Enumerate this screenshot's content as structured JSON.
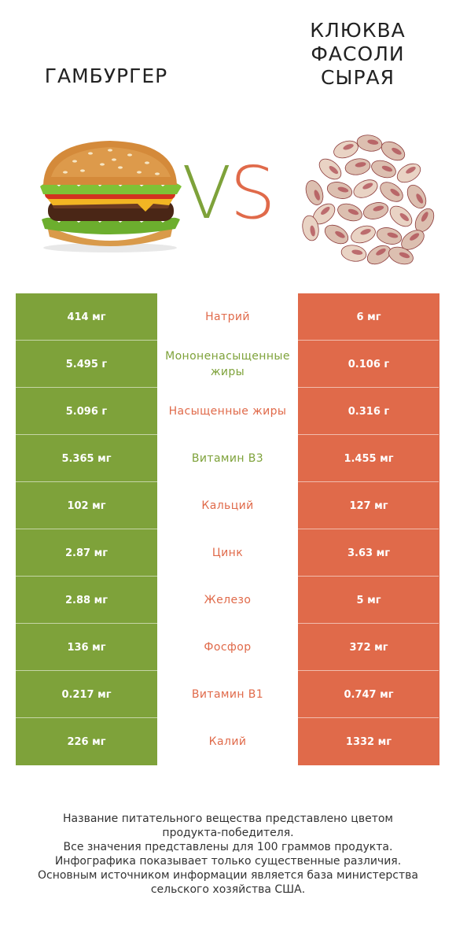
{
  "left_product": {
    "title": "ГАМБУРГЕР",
    "image": "hamburger-photo"
  },
  "right_product": {
    "title_lines": [
      "КЛЮКВА",
      "ФАСОЛИ",
      "СЫРАЯ"
    ],
    "image": "cranberry-beans-photo"
  },
  "vs": {
    "v": "V",
    "s": "S"
  },
  "colors": {
    "left": "#7ea23a",
    "right": "#e06a4a"
  },
  "rows": [
    {
      "left": "414 мг",
      "nutrient": "Натрий",
      "right": "6 мг",
      "winner": "right"
    },
    {
      "left": "5.495 г",
      "nutrient": "Мононенасыщенные жиры",
      "right": "0.106 г",
      "winner": "left"
    },
    {
      "left": "5.096 г",
      "nutrient": "Насыщенные жиры",
      "right": "0.316 г",
      "winner": "right"
    },
    {
      "left": "5.365 мг",
      "nutrient": "Витамин B3",
      "right": "1.455 мг",
      "winner": "left"
    },
    {
      "left": "102 мг",
      "nutrient": "Кальций",
      "right": "127 мг",
      "winner": "right"
    },
    {
      "left": "2.87 мг",
      "nutrient": "Цинк",
      "right": "3.63 мг",
      "winner": "right"
    },
    {
      "left": "2.88 мг",
      "nutrient": "Железо",
      "right": "5 мг",
      "winner": "right"
    },
    {
      "left": "136 мг",
      "nutrient": "Фосфор",
      "right": "372 мг",
      "winner": "right"
    },
    {
      "left": "0.217 мг",
      "nutrient": "Витамин B1",
      "right": "0.747 мг",
      "winner": "right"
    },
    {
      "left": "226 мг",
      "nutrient": "Калий",
      "right": "1332 мг",
      "winner": "right"
    }
  ],
  "footnote": [
    "Название питательного вещества представлено цветом",
    "продукта-победителя.",
    "Все значения представлены для 100 граммов продукта.",
    "Инфографика показывает только существенные различия.",
    "Основным источником информации является база министерства",
    "сельского хозяйства США."
  ]
}
